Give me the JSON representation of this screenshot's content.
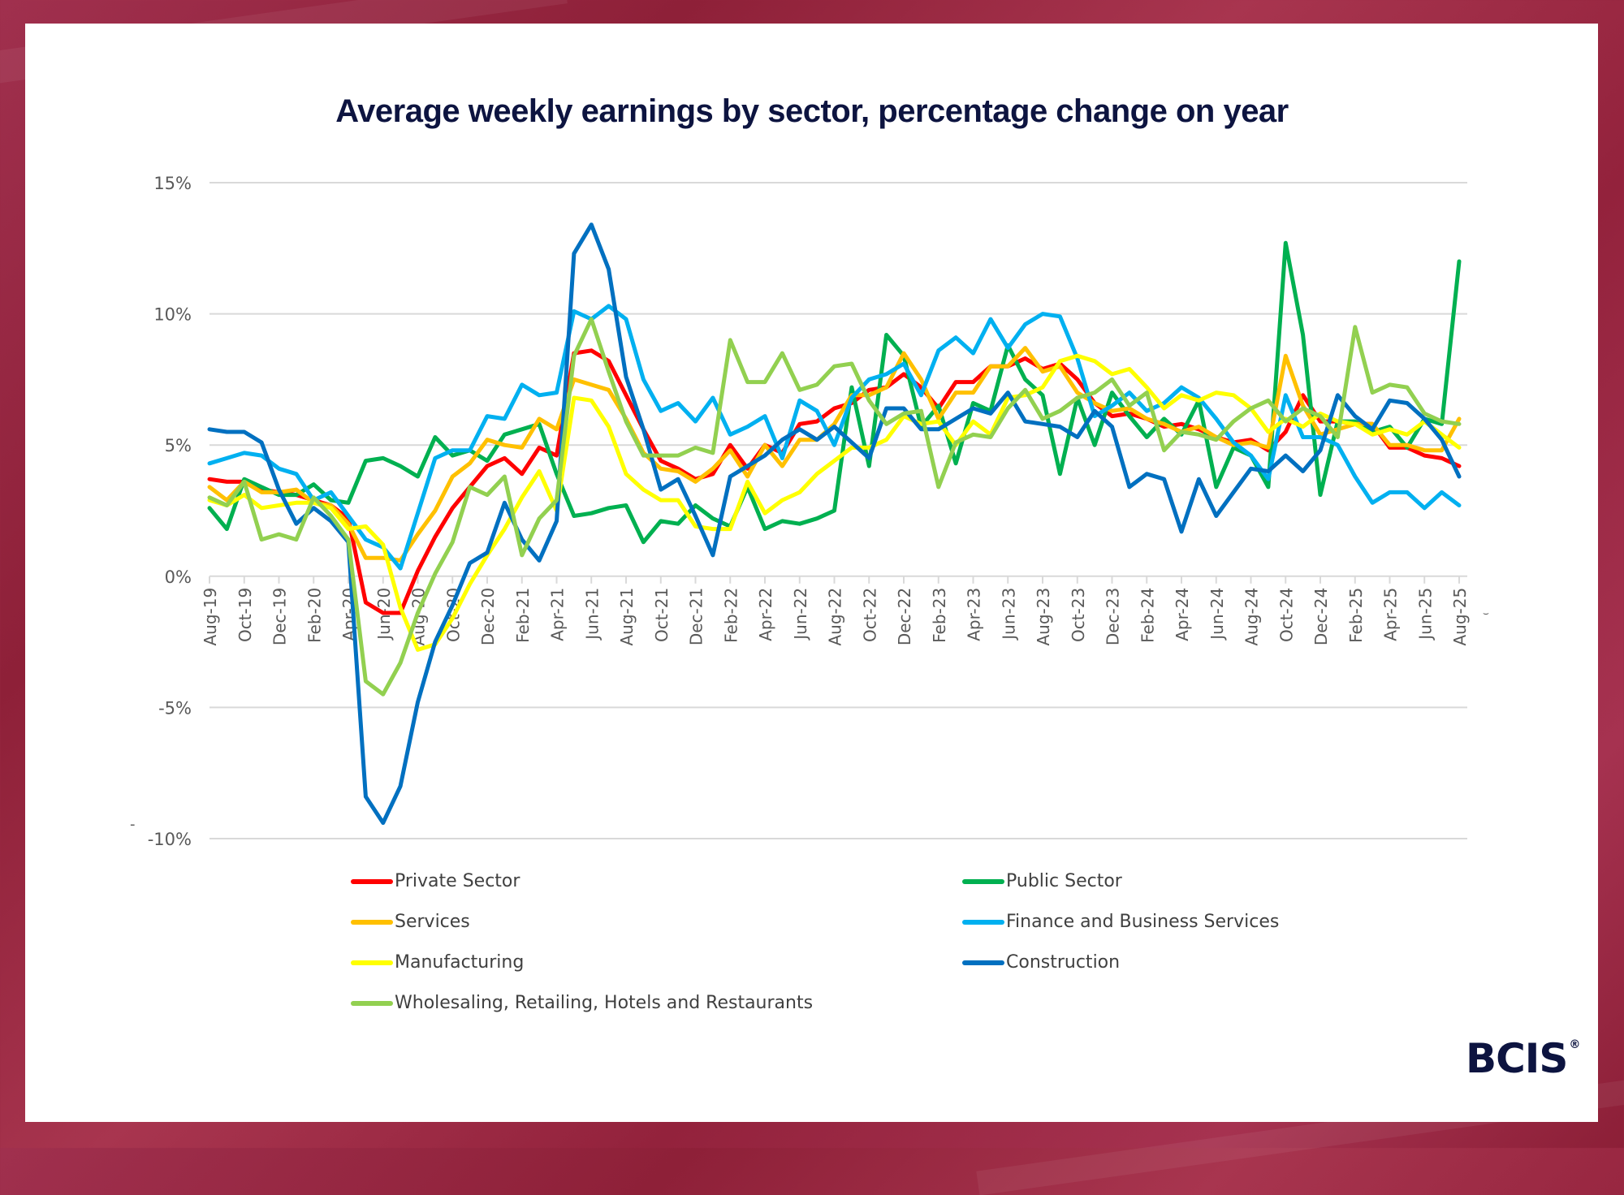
{
  "brand": {
    "logo_text": "BCIS",
    "registered_mark": "®"
  },
  "stray_marks": {
    "left_dash": "-",
    "right_mark": "⌣"
  },
  "chart_data": {
    "type": "line",
    "title": "Average weekly earnings by sector, percentage change on year",
    "xlabel": "",
    "ylabel": "",
    "ylim": [
      -10,
      15
    ],
    "yticks": [
      15,
      10,
      5,
      0,
      -5,
      -10
    ],
    "ytick_labels": [
      "15%",
      "10%",
      "5%",
      "0%",
      "-5%",
      "-10%"
    ],
    "grid": true,
    "legend_position": "bottom",
    "x": [
      "Aug-19",
      "Sep-19",
      "Oct-19",
      "Nov-19",
      "Dec-19",
      "Jan-20",
      "Feb-20",
      "Mar-20",
      "Apr-20",
      "May-20",
      "Jun-20",
      "Jul-20",
      "Aug-20",
      "Sep-20",
      "Oct-20",
      "Nov-20",
      "Dec-20",
      "Jan-21",
      "Feb-21",
      "Mar-21",
      "Apr-21",
      "May-21",
      "Jun-21",
      "Jul-21",
      "Aug-21",
      "Sep-21",
      "Oct-21",
      "Nov-21",
      "Dec-21",
      "Jan-22",
      "Feb-22",
      "Mar-22",
      "Apr-22",
      "May-22",
      "Jun-22",
      "Jul-22",
      "Aug-22",
      "Sep-22",
      "Oct-22",
      "Nov-22",
      "Dec-22",
      "Jan-23",
      "Feb-23",
      "Mar-23",
      "Apr-23",
      "May-23",
      "Jun-23",
      "Jul-23",
      "Aug-23",
      "Sep-23",
      "Oct-23",
      "Nov-23",
      "Dec-23",
      "Jan-24",
      "Feb-24",
      "Mar-24",
      "Apr-24",
      "May-24",
      "Jun-24",
      "Jul-24",
      "Aug-24",
      "Sep-24",
      "Oct-24",
      "Nov-24",
      "Dec-24",
      "Jan-25",
      "Feb-25",
      "Mar-25",
      "Apr-25",
      "May-25",
      "Jun-25",
      "Jul-25",
      "Aug-25"
    ],
    "tick_labels": [
      "Aug-19",
      "Oct-19",
      "Dec-19",
      "Feb-20",
      "Apr-20",
      "Jun-20",
      "Aug-20",
      "Oct-20",
      "Dec-20",
      "Feb-21",
      "Apr-21",
      "Jun-21",
      "Aug-21",
      "Oct-21",
      "Dec-21",
      "Feb-22",
      "Apr-22",
      "Jun-22",
      "Aug-22",
      "Oct-22",
      "Dec-22",
      "Feb-23",
      "Apr-23",
      "Jun-23",
      "Aug-23",
      "Oct-23",
      "Dec-23",
      "Feb-24",
      "Apr-24",
      "Jun-24",
      "Aug-24",
      "Oct-24",
      "Dec-24",
      "Feb-25",
      "Apr-25",
      "Jun-25",
      "Aug-25"
    ],
    "series": [
      {
        "name": "Private Sector",
        "color": "#ff0000",
        "values": [
          3.7,
          3.6,
          3.6,
          3.3,
          3.2,
          3.1,
          2.9,
          2.7,
          2.2,
          -1.0,
          -1.4,
          -1.4,
          0.2,
          1.5,
          2.6,
          3.4,
          4.2,
          4.5,
          3.9,
          4.9,
          4.6,
          8.5,
          8.6,
          8.2,
          6.9,
          5.6,
          4.4,
          4.1,
          3.7,
          3.9,
          5.0,
          4.1,
          5.0,
          4.7,
          5.8,
          5.9,
          6.4,
          6.6,
          7.1,
          7.2,
          7.7,
          7.2,
          6.4,
          7.4,
          7.4,
          8.0,
          8.0,
          8.3,
          7.9,
          8.1,
          7.5,
          6.6,
          6.1,
          6.2,
          6.0,
          5.7,
          5.8,
          5.6,
          5.3,
          5.1,
          5.2,
          4.8,
          5.5,
          6.9,
          5.9,
          5.9,
          5.8,
          5.8,
          4.9,
          4.9,
          4.6,
          4.5,
          4.2
        ]
      },
      {
        "name": "Public Sector",
        "color": "#00b050",
        "values": [
          2.6,
          1.8,
          3.7,
          3.4,
          3.1,
          3.1,
          3.5,
          2.9,
          2.8,
          4.4,
          4.5,
          4.2,
          3.8,
          5.3,
          4.6,
          4.8,
          4.4,
          5.4,
          5.6,
          5.8,
          3.9,
          2.3,
          2.4,
          2.6,
          2.7,
          1.3,
          2.1,
          2.0,
          2.7,
          2.2,
          1.9,
          3.4,
          1.8,
          2.1,
          2.0,
          2.2,
          2.5,
          7.2,
          4.2,
          9.2,
          8.4,
          5.7,
          6.5,
          4.3,
          6.6,
          6.3,
          8.8,
          7.5,
          6.9,
          3.9,
          6.8,
          5.0,
          7.0,
          6.1,
          5.3,
          6.0,
          5.4,
          6.7,
          3.4,
          4.9,
          4.6,
          3.4,
          12.7,
          9.2,
          3.1,
          5.9,
          5.9,
          5.5,
          5.7,
          4.9,
          6.0,
          5.8,
          12.0
        ]
      },
      {
        "name": "Services",
        "color": "#ffc000",
        "values": [
          3.4,
          2.9,
          3.6,
          3.2,
          3.2,
          3.3,
          2.8,
          2.7,
          2.0,
          0.7,
          0.7,
          0.6,
          1.6,
          2.5,
          3.8,
          4.3,
          5.2,
          5.0,
          4.9,
          6.0,
          5.6,
          7.5,
          7.3,
          7.1,
          6.0,
          4.7,
          4.1,
          4.0,
          3.6,
          4.1,
          4.8,
          3.8,
          5.0,
          4.2,
          5.2,
          5.2,
          5.8,
          6.9,
          6.9,
          7.2,
          8.5,
          7.5,
          6.0,
          7.0,
          7.0,
          8.0,
          8.0,
          8.7,
          7.8,
          8.0,
          7.0,
          6.6,
          6.3,
          6.4,
          6.0,
          5.8,
          5.5,
          5.7,
          5.3,
          5.0,
          5.1,
          4.9,
          8.4,
          6.5,
          5.4,
          5.6,
          5.8,
          5.8,
          5.0,
          5.0,
          4.8,
          4.8,
          6.0
        ]
      },
      {
        "name": "Finance and Business Services",
        "color": "#00b0f0",
        "values": [
          4.3,
          4.5,
          4.7,
          4.6,
          4.1,
          3.9,
          2.9,
          3.2,
          2.3,
          1.4,
          1.1,
          0.3,
          2.4,
          4.5,
          4.8,
          4.8,
          6.1,
          6.0,
          7.3,
          6.9,
          7.0,
          10.1,
          9.8,
          10.3,
          9.8,
          7.5,
          6.3,
          6.6,
          5.9,
          6.8,
          5.4,
          5.7,
          6.1,
          4.5,
          6.7,
          6.3,
          5.0,
          6.8,
          7.5,
          7.7,
          8.1,
          6.9,
          8.6,
          9.1,
          8.5,
          9.8,
          8.7,
          9.6,
          10.0,
          9.9,
          8.3,
          6.1,
          6.5,
          7.0,
          6.3,
          6.6,
          7.2,
          6.8,
          6.0,
          5.1,
          4.6,
          3.7,
          6.9,
          5.3,
          5.3,
          5.0,
          3.8,
          2.8,
          3.2,
          3.2,
          2.6,
          3.2,
          2.7
        ]
      },
      {
        "name": "Manufacturing",
        "color": "#ffff00",
        "values": [
          2.9,
          2.7,
          3.1,
          2.6,
          2.7,
          2.8,
          2.8,
          2.6,
          1.8,
          1.9,
          1.2,
          -1.2,
          -2.8,
          -2.6,
          -1.6,
          -0.3,
          0.8,
          1.8,
          3.0,
          4.0,
          2.5,
          6.8,
          6.7,
          5.7,
          3.9,
          3.3,
          2.9,
          2.9,
          1.9,
          1.8,
          1.8,
          3.6,
          2.4,
          2.9,
          3.2,
          3.9,
          4.4,
          4.9,
          4.9,
          5.2,
          6.1,
          5.8,
          5.9,
          5.0,
          5.9,
          5.4,
          6.8,
          6.9,
          7.2,
          8.2,
          8.4,
          8.2,
          7.7,
          7.9,
          7.2,
          6.4,
          6.9,
          6.7,
          7.0,
          6.9,
          6.4,
          5.5,
          6.0,
          5.7,
          6.2,
          5.9,
          5.8,
          5.4,
          5.6,
          5.4,
          5.9,
          5.4,
          4.9
        ]
      },
      {
        "name": "Construction",
        "color": "#0070c0",
        "values": [
          5.6,
          5.5,
          5.5,
          5.1,
          3.3,
          2.0,
          2.6,
          2.1,
          1.3,
          -8.4,
          -9.4,
          -8.0,
          -4.8,
          -2.5,
          -1.1,
          0.5,
          0.9,
          2.8,
          1.4,
          0.6,
          2.1,
          12.3,
          13.4,
          11.7,
          7.6,
          5.6,
          3.3,
          3.7,
          2.3,
          0.8,
          3.8,
          4.2,
          4.6,
          5.2,
          5.6,
          5.2,
          5.7,
          5.1,
          4.5,
          6.4,
          6.4,
          5.6,
          5.6,
          6.0,
          6.4,
          6.2,
          7.0,
          5.9,
          5.8,
          5.7,
          5.3,
          6.3,
          5.7,
          3.4,
          3.9,
          3.7,
          1.7,
          3.7,
          2.3,
          3.2,
          4.1,
          4.0,
          4.6,
          4.0,
          4.8,
          6.9,
          6.1,
          5.6,
          6.7,
          6.6,
          6.0,
          5.2,
          3.8
        ]
      },
      {
        "name": "Wholesaling, Retailing, Hotels and Restaurants",
        "color": "#92d050",
        "values": [
          3.0,
          2.7,
          3.6,
          1.4,
          1.6,
          1.4,
          3.0,
          2.3,
          1.4,
          -4.0,
          -4.5,
          -3.3,
          -1.4,
          0.1,
          1.3,
          3.4,
          3.1,
          3.8,
          0.8,
          2.2,
          2.9,
          8.4,
          9.8,
          7.8,
          5.9,
          4.6,
          4.6,
          4.6,
          4.9,
          4.7,
          9.0,
          7.4,
          7.4,
          8.5,
          7.1,
          7.3,
          8.0,
          8.1,
          6.7,
          5.8,
          6.2,
          6.3,
          3.4,
          5.1,
          5.4,
          5.3,
          6.4,
          7.1,
          6.0,
          6.3,
          6.8,
          7.0,
          7.5,
          6.5,
          7.0,
          4.8,
          5.5,
          5.4,
          5.2,
          5.9,
          6.4,
          6.7,
          5.9,
          6.4,
          6.1,
          5.3,
          9.5,
          7.0,
          7.3,
          7.2,
          6.2,
          5.9,
          5.8
        ]
      }
    ]
  }
}
